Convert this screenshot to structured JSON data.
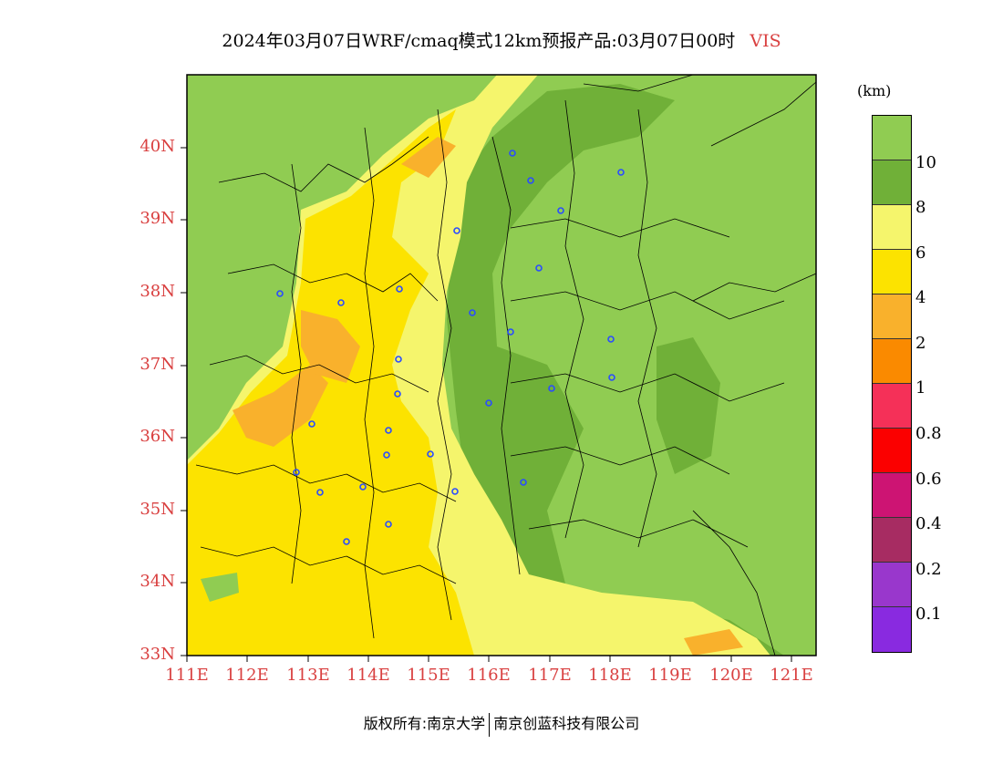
{
  "header": {
    "title": "2024年03月07日WRF/cmaq模式12km预报产品:03月07日00时",
    "variable": "VIS"
  },
  "legend": {
    "unit": "(km)",
    "colors": [
      "#90cc52",
      "#70b038",
      "#f5f56c",
      "#fce300",
      "#f9b12c",
      "#fa8a00",
      "#f53058",
      "#fb0000",
      "#cd1473",
      "#a72c62",
      "#9937cc",
      "#892ae0"
    ],
    "labels": [
      "10",
      "8",
      "6",
      "4",
      "2",
      "1",
      "0.8",
      "0.6",
      "0.4",
      "0.2",
      "0.1"
    ]
  },
  "axes": {
    "lat_labels": [
      "40N",
      "39N",
      "38N",
      "37N",
      "36N",
      "35N",
      "34N",
      "33N"
    ],
    "lon_labels": [
      "111E",
      "112E",
      "113E",
      "114E",
      "115E",
      "116E",
      "117E",
      "118E",
      "119E",
      "120E",
      "121E"
    ]
  },
  "footer": {
    "copyright": "版权所有:南京大学",
    "company": "南京创蓝科技有限公司"
  }
}
